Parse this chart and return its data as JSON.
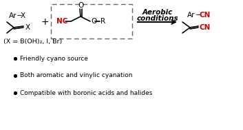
{
  "bg_color": "#ffffff",
  "black": "#000000",
  "red": "#cc0000",
  "gray": "#666666",
  "bullet_points": [
    "Friendly cyano source",
    "Both aromatic and vinylic cyanation",
    "Compatible with boronic acids and halides"
  ],
  "arrow_label_line1": "Aerobic",
  "arrow_label_line2": "conditions",
  "x_label": "(X = B(OH)₂, I, Br)"
}
